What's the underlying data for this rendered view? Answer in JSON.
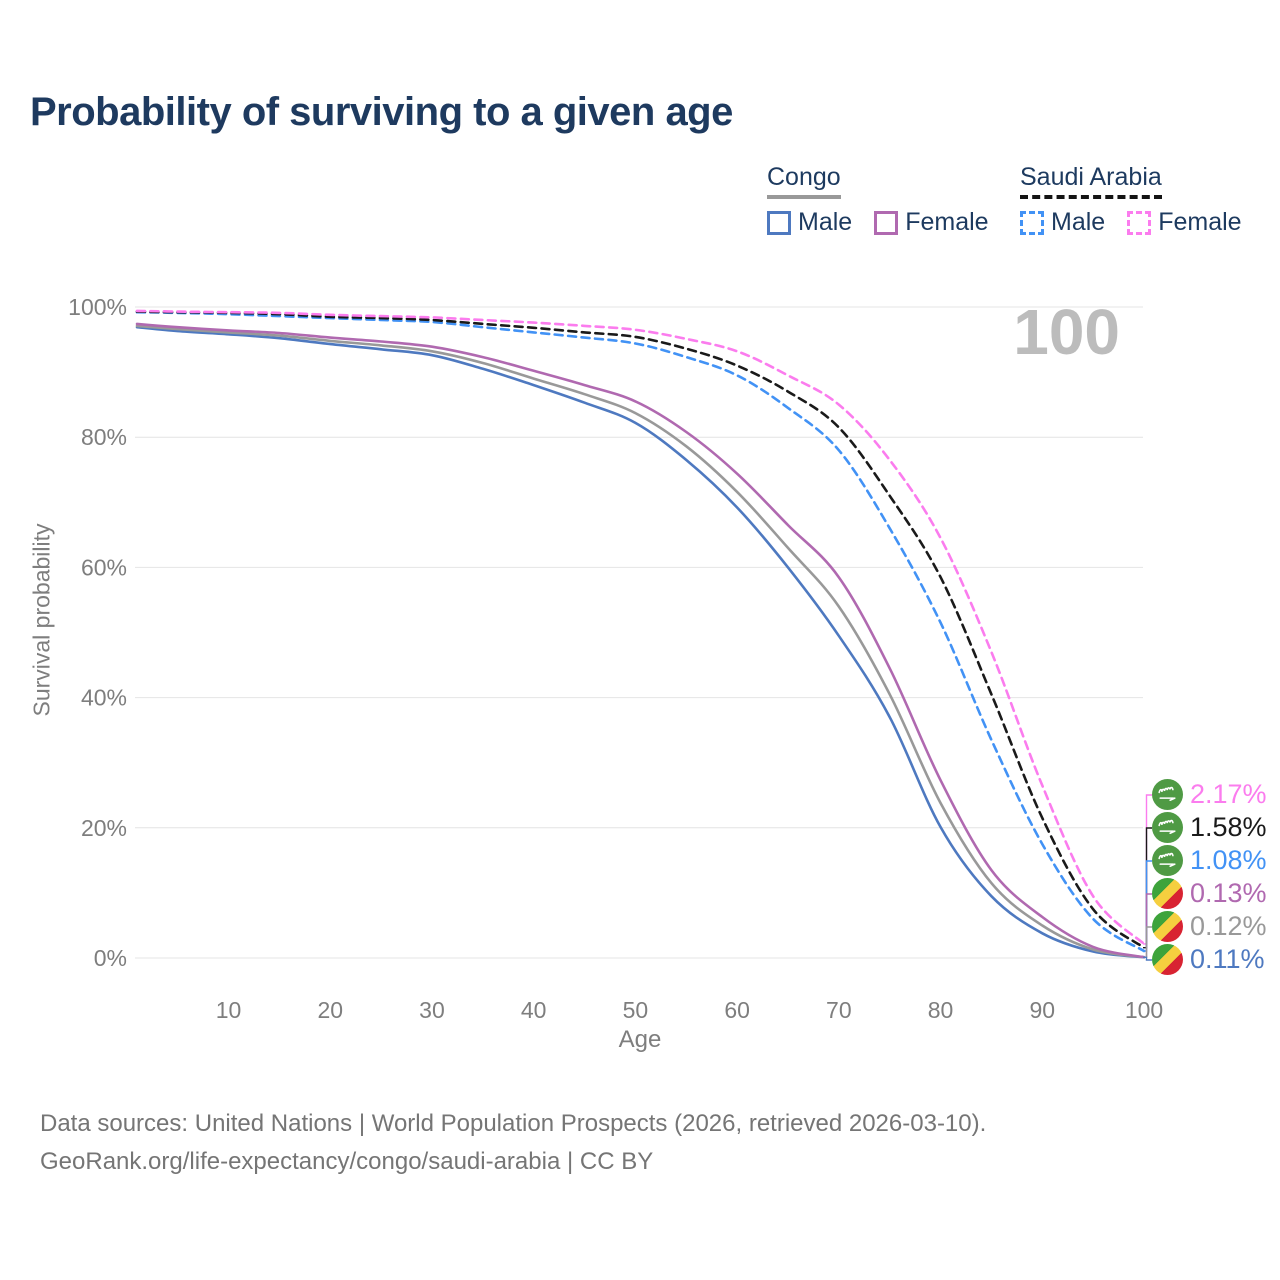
{
  "title": "Probability of surviving to a given age",
  "watermark": "100",
  "legend": {
    "groups": [
      {
        "country": "Congo",
        "line_style": "solid",
        "underline_color": "#999999",
        "items": [
          {
            "label": "Male",
            "color": "#4e79c0",
            "dash": false
          },
          {
            "label": "Female",
            "color": "#b069b0",
            "dash": false
          }
        ]
      },
      {
        "country": "Saudi Arabia",
        "line_style": "dashed",
        "underline_color": "#141414",
        "items": [
          {
            "label": "Male",
            "color": "#4292f5",
            "dash": true
          },
          {
            "label": "Female",
            "color": "#fb7cee",
            "dash": true
          }
        ]
      }
    ]
  },
  "chart_data": {
    "type": "line",
    "title": "Probability of surviving to a given age",
    "xlabel": "Age",
    "ylabel": "Survival probability",
    "xlim": [
      1,
      100
    ],
    "ylim": [
      0,
      100
    ],
    "xticks": [
      10,
      20,
      30,
      40,
      50,
      60,
      70,
      80,
      90,
      100
    ],
    "yticks": [
      0,
      20,
      40,
      60,
      80,
      100
    ],
    "ytick_suffix": "%",
    "grid": true,
    "legend_position": "top-right",
    "x": [
      1,
      5,
      10,
      15,
      20,
      25,
      30,
      35,
      40,
      45,
      50,
      55,
      60,
      65,
      70,
      75,
      80,
      85,
      90,
      95,
      100
    ],
    "series": [
      {
        "name": "Congo — Male",
        "country": "Congo",
        "sex": "Male",
        "color": "#4e79c0",
        "dash": false,
        "values": [
          96.9,
          96.3,
          95.8,
          95.2,
          94.3,
          93.5,
          92.6,
          90.5,
          88.0,
          85.3,
          82.2,
          76.5,
          69.2,
          60.0,
          49.5,
          37.0,
          20.1,
          9.5,
          3.8,
          1.0,
          0.11
        ],
        "end_label": "0.11%",
        "flag": "congo"
      },
      {
        "name": "Congo — Both sexes",
        "country": "Congo",
        "sex": "Both",
        "color": "#999999",
        "dash": false,
        "values": [
          97.1,
          96.6,
          96.1,
          95.6,
          94.8,
          94.1,
          93.2,
          91.4,
          89.0,
          86.6,
          83.7,
          78.6,
          71.6,
          63.0,
          54.0,
          40.5,
          23.8,
          11.5,
          5.0,
          1.3,
          0.12
        ],
        "end_label": "0.12%",
        "flag": "congo"
      },
      {
        "name": "Congo — Female",
        "country": "Congo",
        "sex": "Female",
        "color": "#b069b0",
        "dash": false,
        "values": [
          97.4,
          96.9,
          96.4,
          96.0,
          95.3,
          94.7,
          93.9,
          92.3,
          90.2,
          88.0,
          85.5,
          80.8,
          74.4,
          66.5,
          58.5,
          44.5,
          27.3,
          13.5,
          6.3,
          1.7,
          0.13
        ],
        "end_label": "0.13%",
        "flag": "congo"
      },
      {
        "name": "Saudi Arabia — Male",
        "country": "Saudi Arabia",
        "sex": "Male",
        "color": "#4292f5",
        "dash": true,
        "values": [
          99.2,
          99.1,
          98.9,
          98.6,
          98.3,
          98.0,
          97.7,
          96.9,
          96.1,
          95.3,
          94.4,
          92.3,
          89.5,
          84.5,
          78.0,
          66.0,
          51.5,
          33.5,
          17.5,
          6.0,
          1.08
        ],
        "end_label": "1.08%",
        "flag": "saudi"
      },
      {
        "name": "Saudi Arabia — Both sexes",
        "country": "Saudi Arabia",
        "sex": "Both",
        "color": "#1a1a1a",
        "dash": true,
        "values": [
          99.3,
          99.2,
          99.1,
          98.9,
          98.5,
          98.3,
          98.0,
          97.4,
          96.8,
          96.1,
          95.4,
          93.6,
          91.0,
          87.0,
          81.5,
          71.0,
          58.5,
          40.5,
          21.5,
          7.5,
          1.58
        ],
        "end_label": "1.58%",
        "flag": "saudi"
      },
      {
        "name": "Saudi Arabia — Female",
        "country": "Saudi Arabia",
        "sex": "Female",
        "color": "#fb7cee",
        "dash": true,
        "values": [
          99.4,
          99.3,
          99.2,
          99.1,
          98.8,
          98.6,
          98.4,
          98.0,
          97.6,
          97.1,
          96.5,
          95.1,
          93.2,
          89.5,
          85.0,
          76.5,
          64.5,
          47.0,
          26.5,
          9.5,
          2.17
        ],
        "end_label": "2.17%",
        "flag": "saudi"
      }
    ]
  },
  "footer": {
    "line1": "Data sources: United Nations | World Population Prospects (2026, retrieved 2026-03-10).",
    "line2": "GeoRank.org/life-expectancy/congo/saudi-arabia | CC BY"
  }
}
